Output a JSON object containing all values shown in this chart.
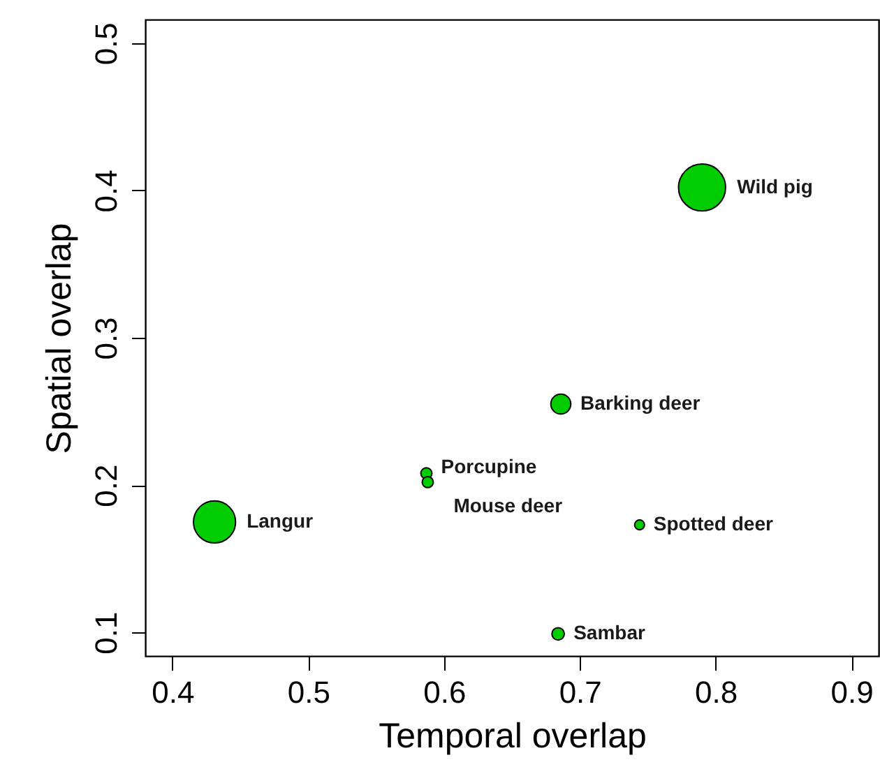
{
  "chart_data": {
    "type": "bubble",
    "xlabel": "Temporal overlap",
    "ylabel": "Spatial overlap",
    "xlim": [
      0.38,
      0.92
    ],
    "ylim": [
      0.084,
      0.516
    ],
    "xticks": [
      0.4,
      0.5,
      0.6,
      0.7,
      0.8,
      0.9
    ],
    "yticks": [
      0.1,
      0.2,
      0.3,
      0.4,
      0.5
    ],
    "series": [
      {
        "color": "#00cc00",
        "x": [
          0.79,
          0.686,
          0.587,
          0.588,
          0.431,
          0.744,
          0.684
        ],
        "values": [
          0.402,
          0.255,
          0.208,
          0.202,
          0.175,
          0.173,
          0.099
        ],
        "sizes": [
          1,
          0.18,
          0.056,
          0.056,
          0.8,
          0.044,
          0.07
        ]
      }
    ],
    "annotations": [
      {
        "text": "Wild pig",
        "x": 0.79,
        "y": 0.402
      },
      {
        "text": "Barking deer",
        "x": 0.686,
        "y": 0.255
      },
      {
        "text": "Porcupine",
        "x": 0.587,
        "y": 0.208
      },
      {
        "text": "Mouse deer",
        "x": 0.588,
        "y": 0.202
      },
      {
        "text": "Langur",
        "x": 0.431,
        "y": 0.175
      },
      {
        "text": "Spotted deer",
        "x": 0.744,
        "y": 0.173
      },
      {
        "text": "Sambar",
        "x": 0.684,
        "y": 0.099
      }
    ]
  }
}
